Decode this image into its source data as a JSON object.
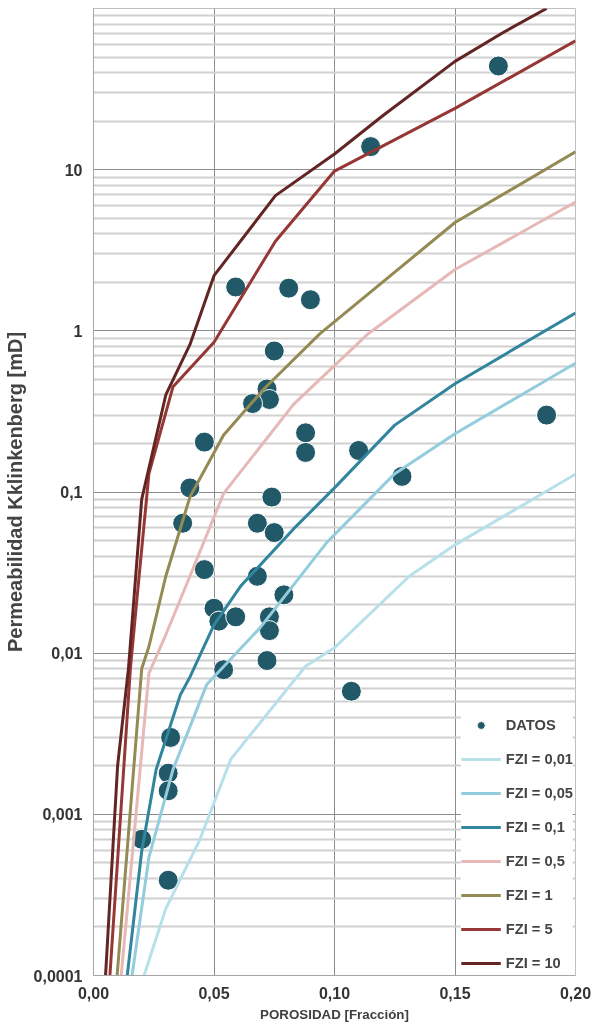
{
  "chart_data": {
    "type": "line",
    "xlabel": "POROSIDAD [Fracción]",
    "ylabel": "Permeabilidad Kklinkenberg [mD]",
    "log": "y",
    "grid": true,
    "legend": "bottom right",
    "xlim": [
      0,
      0.2
    ],
    "ylim": [
      0.0001,
      100
    ],
    "xticks": [
      {
        "value": 0,
        "label": "0,00"
      },
      {
        "value": 0.05,
        "label": "0,05"
      },
      {
        "value": 0.1,
        "label": "0,10"
      },
      {
        "value": 0.15,
        "label": "0,15"
      },
      {
        "value": 0.2,
        "label": "0,20"
      }
    ],
    "yticks": [
      {
        "value": 0.0001,
        "label": "0,0001"
      },
      {
        "value": 0.001,
        "label": "0,001"
      },
      {
        "value": 0.01,
        "label": "0,01"
      },
      {
        "value": 0.1,
        "label": "0,1"
      },
      1,
      10
    ],
    "series": [
      {
        "name": "DATOS",
        "type": "scatter",
        "marker": "circle",
        "color": "#215968",
        "x": [
          0.168,
          0.115,
          0.059,
          0.081,
          0.09,
          0.075,
          0.072,
          0.073,
          0.066,
          0.046,
          0.088,
          0.088,
          0.11,
          0.04,
          0.037,
          0.074,
          0.068,
          0.075,
          0.046,
          0.068,
          0.079,
          0.05,
          0.052,
          0.059,
          0.073,
          0.073,
          0.072,
          0.054,
          0.188,
          0.128,
          0.107,
          0.032,
          0.031,
          0.031,
          0.02,
          0.031
        ],
        "values": [
          44,
          13.9,
          1.87,
          1.84,
          1.56,
          0.75,
          0.436,
          0.375,
          0.354,
          0.204,
          0.233,
          0.176,
          0.181,
          0.106,
          0.064,
          0.093,
          0.064,
          0.056,
          0.033,
          0.03,
          0.023,
          0.019,
          0.0158,
          0.0168,
          0.0168,
          0.0138,
          0.009,
          0.0079,
          0.3,
          0.125,
          0.0058,
          0.003,
          0.0018,
          0.0014,
          0.0007,
          0.00039
        ]
      },
      {
        "name": "FZI = 0,01",
        "color": "#b7e0ea",
        "x": [
          0.021,
          0.03,
          0.044,
          0.057,
          0.088,
          0.1,
          0.131,
          0.15,
          0.2
        ],
        "values": [
          0.0001,
          0.00026,
          0.00069,
          0.0022,
          0.0083,
          0.0108,
          0.03,
          0.047,
          0.129
        ]
      },
      {
        "name": "FZI = 0,05",
        "color": "#93cddd",
        "x": [
          0.016,
          0.023,
          0.033,
          0.047,
          0.069,
          0.097,
          0.125,
          0.15,
          0.2
        ],
        "values": [
          0.0001,
          0.00054,
          0.0019,
          0.0064,
          0.0143,
          0.049,
          0.13,
          0.23,
          0.63
        ]
      },
      {
        "name": "FZI = 0,1",
        "color": "#31859c",
        "x": [
          0.014,
          0.02,
          0.026,
          0.036,
          0.04,
          0.05,
          0.061,
          0.083,
          0.1,
          0.125,
          0.15,
          0.2
        ],
        "values": [
          0.0001,
          0.00059,
          0.0019,
          0.0055,
          0.0071,
          0.015,
          0.026,
          0.059,
          0.106,
          0.26,
          0.47,
          1.29
        ]
      },
      {
        "name": "FZI = 0,5",
        "color": "#e6b9b8",
        "x": [
          0.0115,
          0.023,
          0.03,
          0.04,
          0.054,
          0.083,
          0.114,
          0.15,
          0.2
        ],
        "values": [
          0.0001,
          0.0075,
          0.013,
          0.03,
          0.098,
          0.35,
          0.96,
          2.4,
          6.3
        ]
      },
      {
        "name": "FZI = 1",
        "color": "#948a54",
        "x": [
          0.0098,
          0.02,
          0.023,
          0.03,
          0.04,
          0.054,
          0.071,
          0.094,
          0.15,
          0.2
        ],
        "values": [
          0.0001,
          0.008,
          0.011,
          0.03,
          0.093,
          0.226,
          0.44,
          0.96,
          4.7,
          12.9
        ]
      },
      {
        "name": "FZI = 5",
        "color": "#953735",
        "x": [
          0.0068,
          0.0153,
          0.0175,
          0.023,
          0.033,
          0.05,
          0.0755,
          0.1,
          0.15,
          0.2
        ],
        "values": [
          0.0001,
          0.008,
          0.018,
          0.13,
          0.45,
          0.85,
          3.6,
          9.8,
          24,
          63
        ]
      },
      {
        "name": "FZI = 10",
        "color": "#632523",
        "x": [
          0.005,
          0.01,
          0.0145,
          0.02,
          0.03,
          0.04,
          0.05,
          0.0755,
          0.1,
          0.12,
          0.15,
          0.17,
          0.188
        ],
        "values": [
          0.0001,
          0.002,
          0.008,
          0.09,
          0.4,
          0.82,
          2.2,
          6.9,
          12.5,
          21.6,
          47,
          71,
          100
        ]
      }
    ]
  }
}
